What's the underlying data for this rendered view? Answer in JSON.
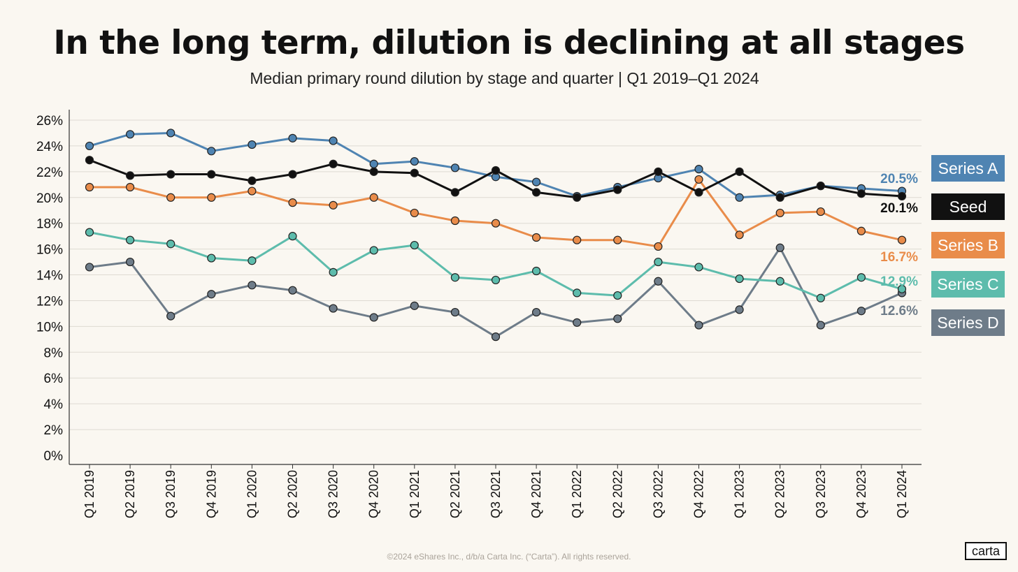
{
  "title": "In the long term, dilution is declining at all stages",
  "subtitle": "Median primary round dilution by stage and quarter | Q1 2019–Q1 2024",
  "footer": "©2024 eShares Inc., d/b/a Carta Inc. (“Carta”). All rights reserved.",
  "logo_text": "carta",
  "chart_data": {
    "type": "line",
    "categories": [
      "Q1 2019",
      "Q2 2019",
      "Q3 2019",
      "Q4 2019",
      "Q1 2020",
      "Q2 2020",
      "Q3 2020",
      "Q4 2020",
      "Q1 2021",
      "Q2 2021",
      "Q3 2021",
      "Q4 2021",
      "Q1 2022",
      "Q2 2022",
      "Q3 2022",
      "Q4 2022",
      "Q1 2023",
      "Q2 2023",
      "Q3 2023",
      "Q4 2023",
      "Q1 2024"
    ],
    "ylim": [
      0,
      26
    ],
    "yticks": [
      "0%",
      "2%",
      "4%",
      "6%",
      "8%",
      "10%",
      "12%",
      "14%",
      "16%",
      "18%",
      "20%",
      "22%",
      "24%",
      "26%"
    ],
    "ytick_values": [
      0,
      2,
      4,
      6,
      8,
      10,
      12,
      14,
      16,
      18,
      20,
      22,
      24,
      26
    ],
    "grid": true,
    "legend_position": "right",
    "series": [
      {
        "name": "Series A",
        "color": "#4f84b2",
        "end_label": "20.5%",
        "values": [
          24.0,
          24.9,
          25.0,
          23.6,
          24.1,
          24.6,
          24.4,
          22.6,
          22.8,
          22.3,
          21.6,
          21.2,
          20.1,
          20.8,
          21.5,
          22.2,
          20.0,
          20.2,
          20.9,
          20.7,
          20.5
        ]
      },
      {
        "name": "Seed",
        "color": "#111111",
        "end_label": "20.1%",
        "values": [
          22.9,
          21.7,
          21.8,
          21.8,
          21.3,
          21.8,
          22.6,
          22.0,
          21.9,
          20.4,
          22.1,
          20.4,
          20.0,
          20.6,
          22.0,
          20.4,
          22.0,
          20.0,
          20.9,
          20.3,
          20.1
        ]
      },
      {
        "name": "Series B",
        "color": "#e98c4a",
        "end_label": "16.7%",
        "values": [
          20.8,
          20.8,
          20.0,
          20.0,
          20.5,
          19.6,
          19.4,
          20.0,
          18.8,
          18.2,
          18.0,
          16.9,
          16.7,
          16.7,
          16.2,
          21.4,
          17.1,
          18.8,
          18.9,
          17.4,
          16.7
        ]
      },
      {
        "name": "Series C",
        "color": "#5dbcac",
        "end_label": "12.9%",
        "values": [
          17.3,
          16.7,
          16.4,
          15.3,
          15.1,
          17.0,
          14.2,
          15.9,
          16.3,
          13.8,
          13.6,
          14.3,
          12.6,
          12.4,
          15.0,
          14.6,
          13.7,
          13.5,
          12.2,
          13.8,
          12.9
        ]
      },
      {
        "name": "Series D",
        "color": "#6e7c89",
        "end_label": "12.6%",
        "values": [
          14.6,
          15.0,
          10.8,
          12.5,
          13.2,
          12.8,
          11.4,
          10.7,
          11.6,
          11.1,
          9.2,
          11.1,
          10.3,
          10.6,
          13.5,
          10.1,
          11.3,
          16.1,
          10.1,
          11.2,
          12.6
        ]
      }
    ]
  }
}
